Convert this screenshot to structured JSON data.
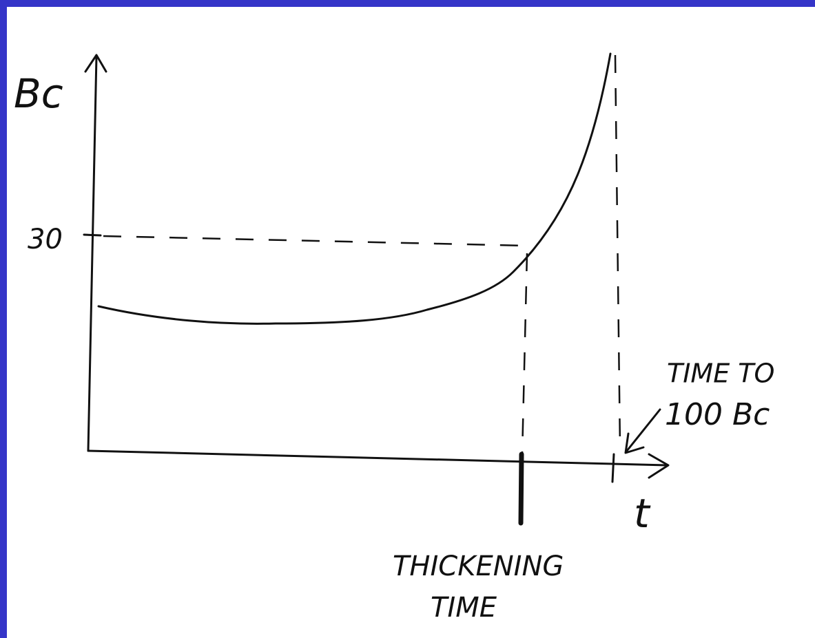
{
  "axes": {
    "y_label": "Bc",
    "x_label": "t",
    "y_tick": "30"
  },
  "annotations": {
    "time_to_100_line1": "TIME TO",
    "time_to_100_line2": "100 Bc",
    "thickening_line1": "THICKENING",
    "thickening_line2": "TIME"
  }
}
